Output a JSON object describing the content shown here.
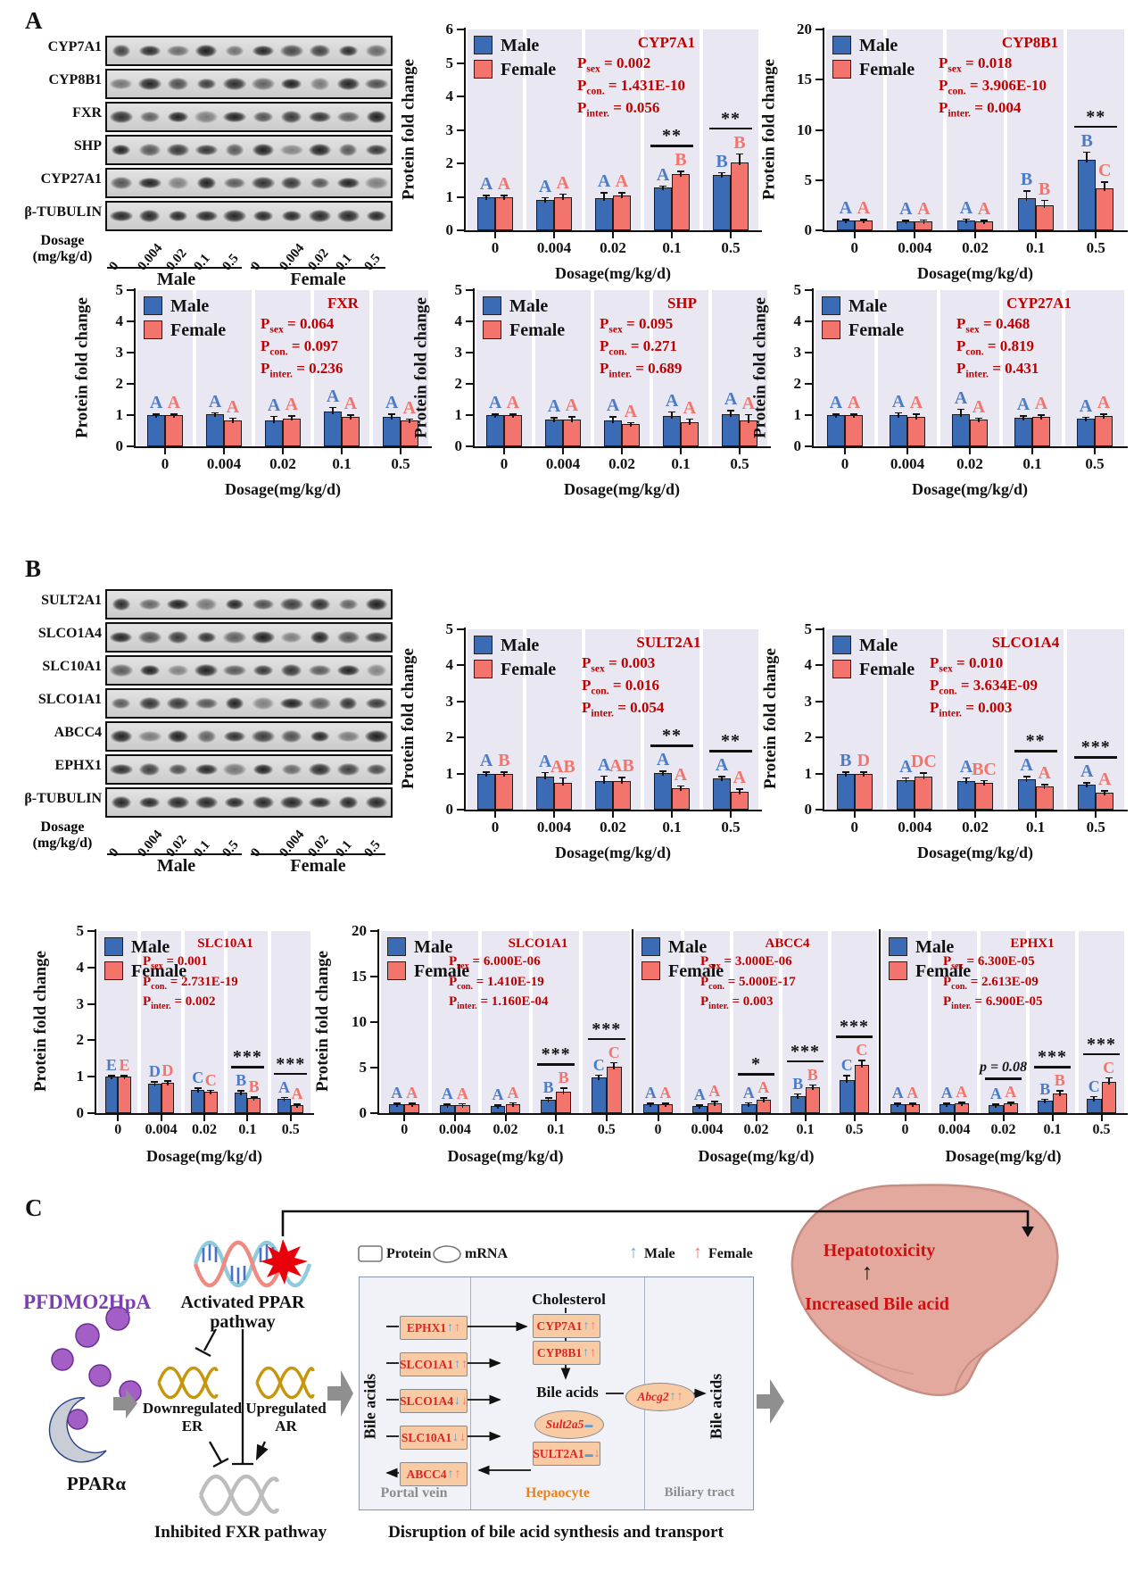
{
  "panel_labels": {
    "a": "A",
    "b": "B",
    "c": "C"
  },
  "colors": {
    "male": "#3b6bb4",
    "female": "#f2746c",
    "male_letter": "#4c7bc8",
    "female_letter": "#f2746c",
    "stats_red": "#bf0000",
    "plot_bg": "#e9e8f2",
    "purple": "#7b3fb2",
    "peach": "#f8cba4",
    "box_red": "#e02424",
    "orange_label": "#e8821e",
    "gray_label": "#8c8c8c"
  },
  "blots": {
    "a": {
      "rows": [
        "CYP7A1",
        "CYP8B1",
        "FXR",
        "SHP",
        "CYP27A1",
        "β-TUBULIN"
      ]
    },
    "b": {
      "rows": [
        "SULT2A1",
        "SLCO1A4",
        "SLC10A1",
        "SLCO1A1",
        "ABCC4",
        "EPHX1",
        "β-TUBULIN"
      ]
    },
    "dosage_line1": "Dosage",
    "dosage_line2": "(mg/kg/d)",
    "lane_doses": [
      "0",
      "0.004",
      "0.02",
      "0.1",
      "0.5"
    ],
    "groups": [
      "Male",
      "Female"
    ]
  },
  "chart_common": {
    "ylabel": "Protein fold change",
    "xlabel": "Dosage(mg/kg/d)",
    "legend": [
      "Male",
      "Female"
    ],
    "categories": [
      "0",
      "0.004",
      "0.02",
      "0.1",
      "0.5"
    ]
  },
  "chart_data": [
    {
      "id": "CYP7A1",
      "type": "bar",
      "title": "CYP7A1",
      "ylim": [
        0,
        6
      ],
      "stats": {
        "p_sex": "0.002",
        "p_con": "1.431E-10",
        "p_inter": "0.056"
      },
      "series": [
        {
          "name": "Male",
          "values": [
            1.0,
            0.92,
            0.97,
            1.27,
            1.65
          ],
          "errors": [
            0.04,
            0.05,
            0.15,
            0.05,
            0.07
          ],
          "letters": [
            "A",
            "A",
            "A",
            "A",
            "B"
          ]
        },
        {
          "name": "Female",
          "values": [
            1.0,
            1.0,
            1.05,
            1.68,
            2.02
          ],
          "errors": [
            0.04,
            0.08,
            0.06,
            0.08,
            0.25
          ],
          "letters": [
            "A",
            "A",
            "A",
            "B",
            "B"
          ]
        }
      ],
      "sig": [
        {
          "group": 3,
          "label": "**"
        },
        {
          "group": 4,
          "label": "**"
        }
      ]
    },
    {
      "id": "CYP8B1",
      "type": "bar",
      "title": "CYP8B1",
      "ylim": [
        0,
        20
      ],
      "stats": {
        "p_sex": "0.018",
        "p_con": "3.906E-10",
        "p_inter": "0.004"
      },
      "series": [
        {
          "name": "Male",
          "values": [
            1.0,
            0.85,
            0.95,
            3.2,
            7.0
          ],
          "errors": [
            0.06,
            0.12,
            0.15,
            0.7,
            0.75
          ],
          "letters": [
            "A",
            "A",
            "A",
            "B",
            "B"
          ]
        },
        {
          "name": "Female",
          "values": [
            1.0,
            0.9,
            0.85,
            2.5,
            4.2
          ],
          "errors": [
            0.06,
            0.12,
            0.12,
            0.45,
            0.6
          ],
          "letters": [
            "A",
            "A",
            "A",
            "B",
            "C"
          ]
        }
      ],
      "sig": [
        {
          "group": 4,
          "label": "**"
        }
      ]
    },
    {
      "id": "FXR",
      "type": "bar",
      "title": "FXR",
      "ylim": [
        0,
        5
      ],
      "stats": {
        "p_sex": "0.064",
        "p_con": "0.097",
        "p_inter": "0.236"
      },
      "series": [
        {
          "name": "Male",
          "values": [
            1.0,
            1.03,
            0.83,
            1.12,
            0.93
          ],
          "errors": [
            0.02,
            0.04,
            0.12,
            0.12,
            0.1
          ],
          "letters": [
            "A",
            "A",
            "A",
            "A",
            "A"
          ]
        },
        {
          "name": "Female",
          "values": [
            1.0,
            0.83,
            0.9,
            0.94,
            0.82
          ],
          "errors": [
            0.02,
            0.07,
            0.07,
            0.06,
            0.04
          ],
          "letters": [
            "A",
            "A",
            "A",
            "A",
            "A"
          ]
        }
      ],
      "sig": []
    },
    {
      "id": "SHP",
      "type": "bar",
      "title": "SHP",
      "ylim": [
        0,
        5
      ],
      "stats": {
        "p_sex": "0.095",
        "p_con": "0.271",
        "p_inter": "0.689"
      },
      "series": [
        {
          "name": "Male",
          "values": [
            1.0,
            0.86,
            0.84,
            0.98,
            1.03
          ],
          "errors": [
            0.02,
            0.05,
            0.09,
            0.12,
            0.11
          ],
          "letters": [
            "A",
            "A",
            "A",
            "A",
            "A"
          ]
        },
        {
          "name": "Female",
          "values": [
            1.0,
            0.86,
            0.71,
            0.76,
            0.83
          ],
          "errors": [
            0.02,
            0.08,
            0.04,
            0.1,
            0.18
          ],
          "letters": [
            "A",
            "A",
            "A",
            "A",
            "A"
          ]
        }
      ],
      "sig": []
    },
    {
      "id": "CYP27A1",
      "type": "bar",
      "title": "CYP27A1",
      "ylim": [
        0,
        5
      ],
      "stats": {
        "p_sex": "0.468",
        "p_con": "0.819",
        "p_inter": "0.431"
      },
      "series": [
        {
          "name": "Male",
          "values": [
            1.0,
            0.99,
            1.03,
            0.92,
            0.88
          ],
          "errors": [
            0.02,
            0.07,
            0.15,
            0.04,
            0.04
          ],
          "letters": [
            "A",
            "A",
            "A",
            "A",
            "A"
          ]
        },
        {
          "name": "Female",
          "values": [
            1.0,
            0.93,
            0.86,
            0.93,
            0.98
          ],
          "errors": [
            0.02,
            0.1,
            0.04,
            0.07,
            0.04
          ],
          "letters": [
            "A",
            "A",
            "A",
            "A",
            "A"
          ]
        }
      ],
      "sig": []
    },
    {
      "id": "SULT2A1",
      "type": "bar",
      "title": "SULT2A1",
      "ylim": [
        0,
        5
      ],
      "stats": {
        "p_sex": "0.003",
        "p_con": "0.016",
        "p_inter": "0.054"
      },
      "series": [
        {
          "name": "Male",
          "values": [
            1.0,
            0.92,
            0.8,
            1.02,
            0.86
          ],
          "errors": [
            0.03,
            0.1,
            0.12,
            0.04,
            0.05
          ],
          "letters": [
            "A",
            "A",
            "A",
            "A",
            "A"
          ]
        },
        {
          "name": "Female",
          "values": [
            1.0,
            0.75,
            0.8,
            0.6,
            0.5
          ],
          "errors": [
            0.03,
            0.12,
            0.09,
            0.05,
            0.06
          ],
          "letters": [
            "B",
            "AB",
            "AB",
            "A",
            "A"
          ]
        }
      ],
      "sig": [
        {
          "group": 3,
          "label": "**"
        },
        {
          "group": 4,
          "label": "**"
        }
      ]
    },
    {
      "id": "SLCO1A4",
      "type": "bar",
      "title": "SLCO1A4",
      "ylim": [
        0,
        5
      ],
      "stats": {
        "p_sex": "0.010",
        "p_con": "3.634E-09",
        "p_inter": "0.003"
      },
      "series": [
        {
          "name": "Male",
          "values": [
            1.0,
            0.82,
            0.79,
            0.84,
            0.7
          ],
          "errors": [
            0.03,
            0.05,
            0.08,
            0.07,
            0.04
          ],
          "letters": [
            "B",
            "A",
            "A",
            "A",
            "A"
          ]
        },
        {
          "name": "Female",
          "values": [
            1.0,
            0.92,
            0.74,
            0.65,
            0.46
          ],
          "errors": [
            0.03,
            0.09,
            0.06,
            0.04,
            0.06
          ],
          "letters": [
            "D",
            "DC",
            "BC",
            "A",
            "A"
          ]
        }
      ],
      "sig": [
        {
          "group": 3,
          "label": "**"
        },
        {
          "group": 4,
          "label": "***"
        }
      ]
    },
    {
      "id": "SLC10A1",
      "type": "bar",
      "title": "SLC10A1",
      "ylim": [
        0,
        5
      ],
      "stats": {
        "p_sex": "0.001",
        "p_con": "2.731E-19",
        "p_inter": "0.002"
      },
      "series": [
        {
          "name": "Male",
          "values": [
            1.0,
            0.81,
            0.63,
            0.56,
            0.38
          ],
          "errors": [
            0.02,
            0.04,
            0.05,
            0.05,
            0.04
          ],
          "letters": [
            "E",
            "D",
            "C",
            "B",
            "A"
          ]
        },
        {
          "name": "Female",
          "values": [
            1.0,
            0.84,
            0.58,
            0.41,
            0.21
          ],
          "errors": [
            0.02,
            0.04,
            0.04,
            0.03,
            0.03
          ],
          "letters": [
            "E",
            "D",
            "C",
            "B",
            "A"
          ]
        }
      ],
      "sig": [
        {
          "group": 3,
          "label": "***"
        },
        {
          "group": 4,
          "label": "***"
        }
      ]
    },
    {
      "id": "SLCO1A1",
      "type": "bar",
      "title": "SLCO1A1",
      "ylim": [
        0,
        20
      ],
      "stats": {
        "p_sex": "6.000E-06",
        "p_con": "1.410E-19",
        "p_inter": "1.160E-04"
      },
      "series": [
        {
          "name": "Male",
          "values": [
            1.0,
            0.85,
            0.75,
            1.5,
            3.9
          ],
          "errors": [
            0.08,
            0.1,
            0.1,
            0.15,
            0.25
          ],
          "letters": [
            "A",
            "A",
            "A",
            "B",
            "C"
          ]
        },
        {
          "name": "Female",
          "values": [
            1.0,
            0.9,
            0.95,
            2.4,
            5.1
          ],
          "errors": [
            0.08,
            0.12,
            0.15,
            0.3,
            0.4
          ],
          "letters": [
            "A",
            "A",
            "A",
            "B",
            "C"
          ]
        }
      ],
      "sig": [
        {
          "group": 3,
          "label": "***"
        },
        {
          "group": 4,
          "label": "***"
        }
      ]
    },
    {
      "id": "ABCC4",
      "type": "bar",
      "title": "ABCC4",
      "ylim": [
        0,
        20
      ],
      "stats": {
        "p_sex": "3.000E-06",
        "p_con": "5.000E-17",
        "p_inter": "0.003"
      },
      "series": [
        {
          "name": "Male",
          "values": [
            1.0,
            0.75,
            0.95,
            1.9,
            3.6
          ],
          "errors": [
            0.06,
            0.12,
            0.15,
            0.2,
            0.5
          ],
          "letters": [
            "A",
            "A",
            "A",
            "B",
            "C"
          ]
        },
        {
          "name": "Female",
          "values": [
            1.0,
            1.1,
            1.5,
            2.8,
            5.3
          ],
          "errors": [
            0.06,
            0.15,
            0.15,
            0.25,
            0.45
          ],
          "letters": [
            "A",
            "A",
            "A",
            "B",
            "C"
          ]
        }
      ],
      "sig": [
        {
          "group": 2,
          "label": "*"
        },
        {
          "group": 3,
          "label": "***"
        },
        {
          "group": 4,
          "label": "***"
        }
      ]
    },
    {
      "id": "EPHX1",
      "type": "bar",
      "title": "EPHX1",
      "ylim": [
        0,
        20
      ],
      "stats": {
        "p_sex": "6.300E-05",
        "p_con": "2.613E-09",
        "p_inter": "6.900E-05"
      },
      "series": [
        {
          "name": "Male",
          "values": [
            1.0,
            0.95,
            0.85,
            1.35,
            1.6
          ],
          "errors": [
            0.05,
            0.1,
            0.1,
            0.15,
            0.2
          ],
          "letters": [
            "A",
            "A",
            "A",
            "B",
            "C"
          ]
        },
        {
          "name": "Female",
          "values": [
            1.0,
            1.05,
            1.05,
            2.2,
            3.4
          ],
          "errors": [
            0.05,
            0.1,
            0.1,
            0.25,
            0.45
          ],
          "letters": [
            "A",
            "A",
            "A",
            "B",
            "C"
          ]
        }
      ],
      "sig": [
        {
          "group": 2,
          "label": "p = 0.08"
        },
        {
          "group": 3,
          "label": "***"
        },
        {
          "group": 4,
          "label": "***"
        }
      ]
    }
  ],
  "diagram": {
    "compound": "PFDMO2HpA",
    "receptor": "PPARα",
    "activated_pathway": "Activated PPAR pathway",
    "downregulated": "Downregulated ER",
    "upregulated": "Upregulated AR",
    "inhibited_pathway": "Inhibited FXR pathway",
    "caption": "Disruption of bile acid synthesis and transport",
    "legend": {
      "protein": "Protein",
      "mrna": "mRNA",
      "male": "Male",
      "female": "Female"
    },
    "bile_acids_left": "Bile acids",
    "bile_acids_right": "Bile acids",
    "bile_acids_center": "Bile acids",
    "cholesterol": "Cholesterol",
    "sections": {
      "portal": "Portal vein",
      "hepatocyte": "Hepaocyte",
      "biliary": "Biliary tract"
    },
    "proteins": [
      {
        "label": "EPHX1",
        "arrows": [
          "up-m",
          "up-f"
        ]
      },
      {
        "label": "SLCO1A1",
        "arrows": [
          "up-m",
          "up-f"
        ]
      },
      {
        "label": "SLCO1A4",
        "arrows": [
          "down-m",
          "down-f"
        ]
      },
      {
        "label": "SLC10A1",
        "arrows": [
          "down-m",
          "down-f"
        ]
      },
      {
        "label": "ABCC4",
        "arrows": [
          "up-m",
          "up-f"
        ]
      }
    ],
    "enzymes": [
      {
        "label": "CYP7A1",
        "arrows": [
          "up-m",
          "up-f"
        ]
      },
      {
        "label": "CYP8B1",
        "arrows": [
          "up-m",
          "up-f"
        ]
      }
    ],
    "sult2a1": {
      "label": "SULT2A1",
      "arrows": [
        "flat-m",
        "down-f"
      ]
    },
    "mrnas": [
      {
        "label": "Sult2a5",
        "arrows": [
          "flat-m"
        ]
      },
      {
        "label": "Abcg2",
        "arrows": [
          "up-m",
          "up-f"
        ]
      }
    ],
    "liver": {
      "line1": "Hepatotoxicity",
      "line2": "Increased Bile acid"
    }
  }
}
